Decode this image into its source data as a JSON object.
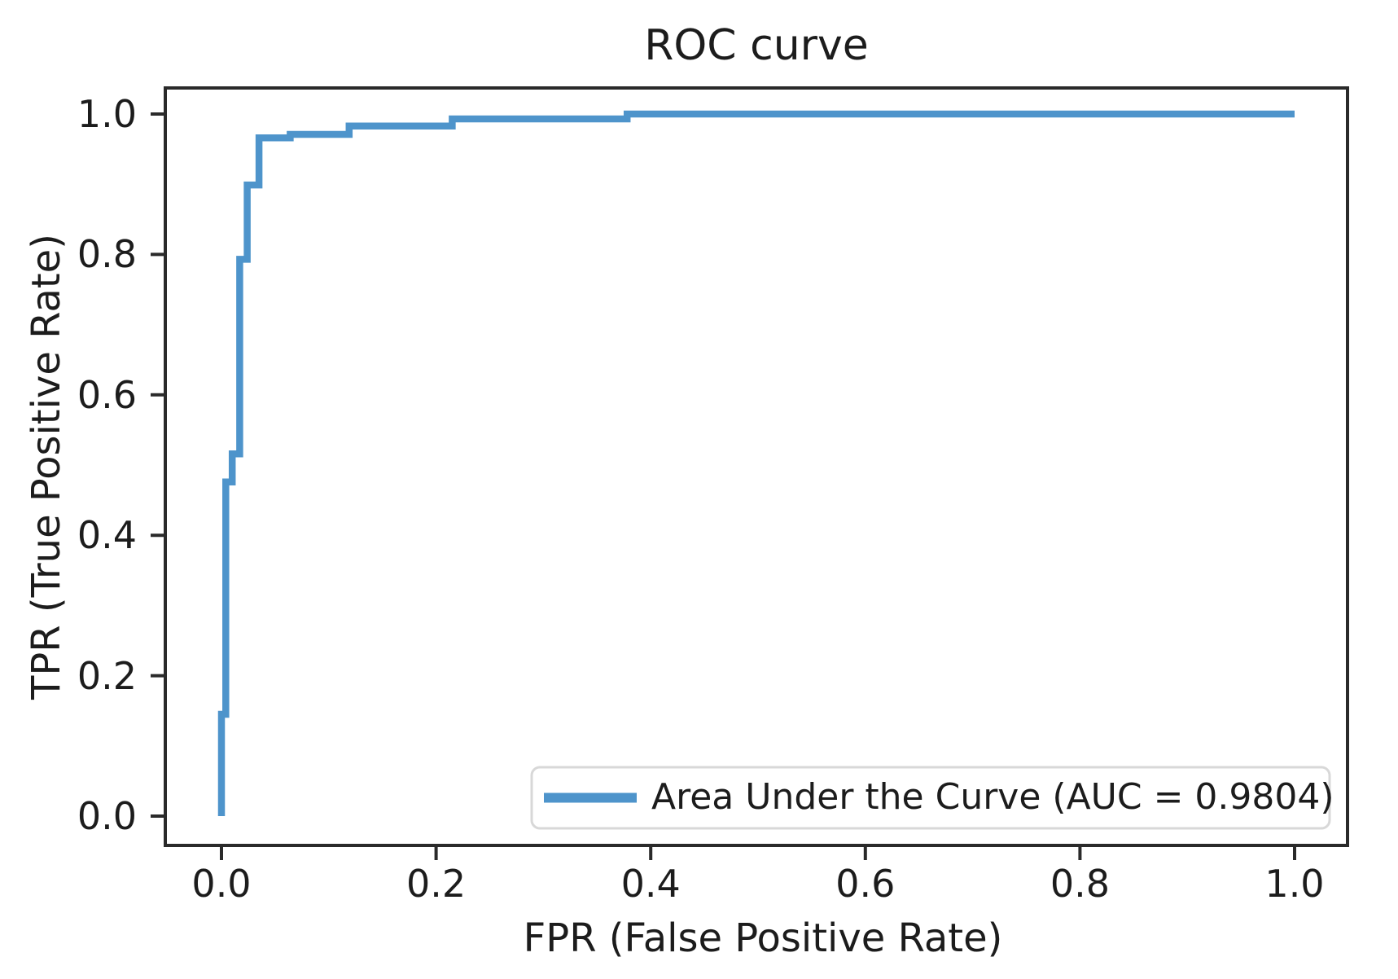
{
  "chart_data": {
    "type": "line",
    "subtype": "roc-step-curve",
    "title": "ROC curve",
    "xlabel": "FPR (False Positive Rate)",
    "ylabel": "TPR (True Positive Rate)",
    "x_tick_labels": [
      "0.0",
      "0.2",
      "0.4",
      "0.6",
      "0.8",
      "1.0"
    ],
    "y_tick_labels": [
      "0.0",
      "0.2",
      "0.4",
      "0.6",
      "0.8",
      "1.0"
    ],
    "xlim": [
      -0.052,
      1.049
    ],
    "ylim": [
      -0.042,
      1.037
    ],
    "grid": false,
    "auc": 0.9804,
    "colors": {
      "curve": "#4e94cb",
      "spine": "#2a2a2a",
      "text": "#1c1c1c",
      "legend_border": "#d8d8d8",
      "background": "#ffffff"
    },
    "legend": {
      "position": "lower right",
      "entries": [
        {
          "label": "Area Under the Curve (AUC = 0.9804)",
          "color": "#4e94cb"
        }
      ]
    },
    "series": [
      {
        "name": "Area Under the Curve (AUC = 0.9804)",
        "step": true,
        "points": [
          [
            0.0,
            0.0
          ],
          [
            0.0,
            0.145
          ],
          [
            0.004,
            0.145
          ],
          [
            0.004,
            0.476
          ],
          [
            0.01,
            0.476
          ],
          [
            0.01,
            0.516
          ],
          [
            0.017,
            0.516
          ],
          [
            0.017,
            0.793
          ],
          [
            0.024,
            0.793
          ],
          [
            0.024,
            0.899
          ],
          [
            0.035,
            0.899
          ],
          [
            0.035,
            0.966
          ],
          [
            0.064,
            0.966
          ],
          [
            0.064,
            0.971
          ],
          [
            0.119,
            0.971
          ],
          [
            0.119,
            0.983
          ],
          [
            0.215,
            0.983
          ],
          [
            0.215,
            0.993
          ],
          [
            0.378,
            0.993
          ],
          [
            0.378,
            1.0
          ],
          [
            1.0,
            1.0
          ]
        ]
      }
    ]
  }
}
